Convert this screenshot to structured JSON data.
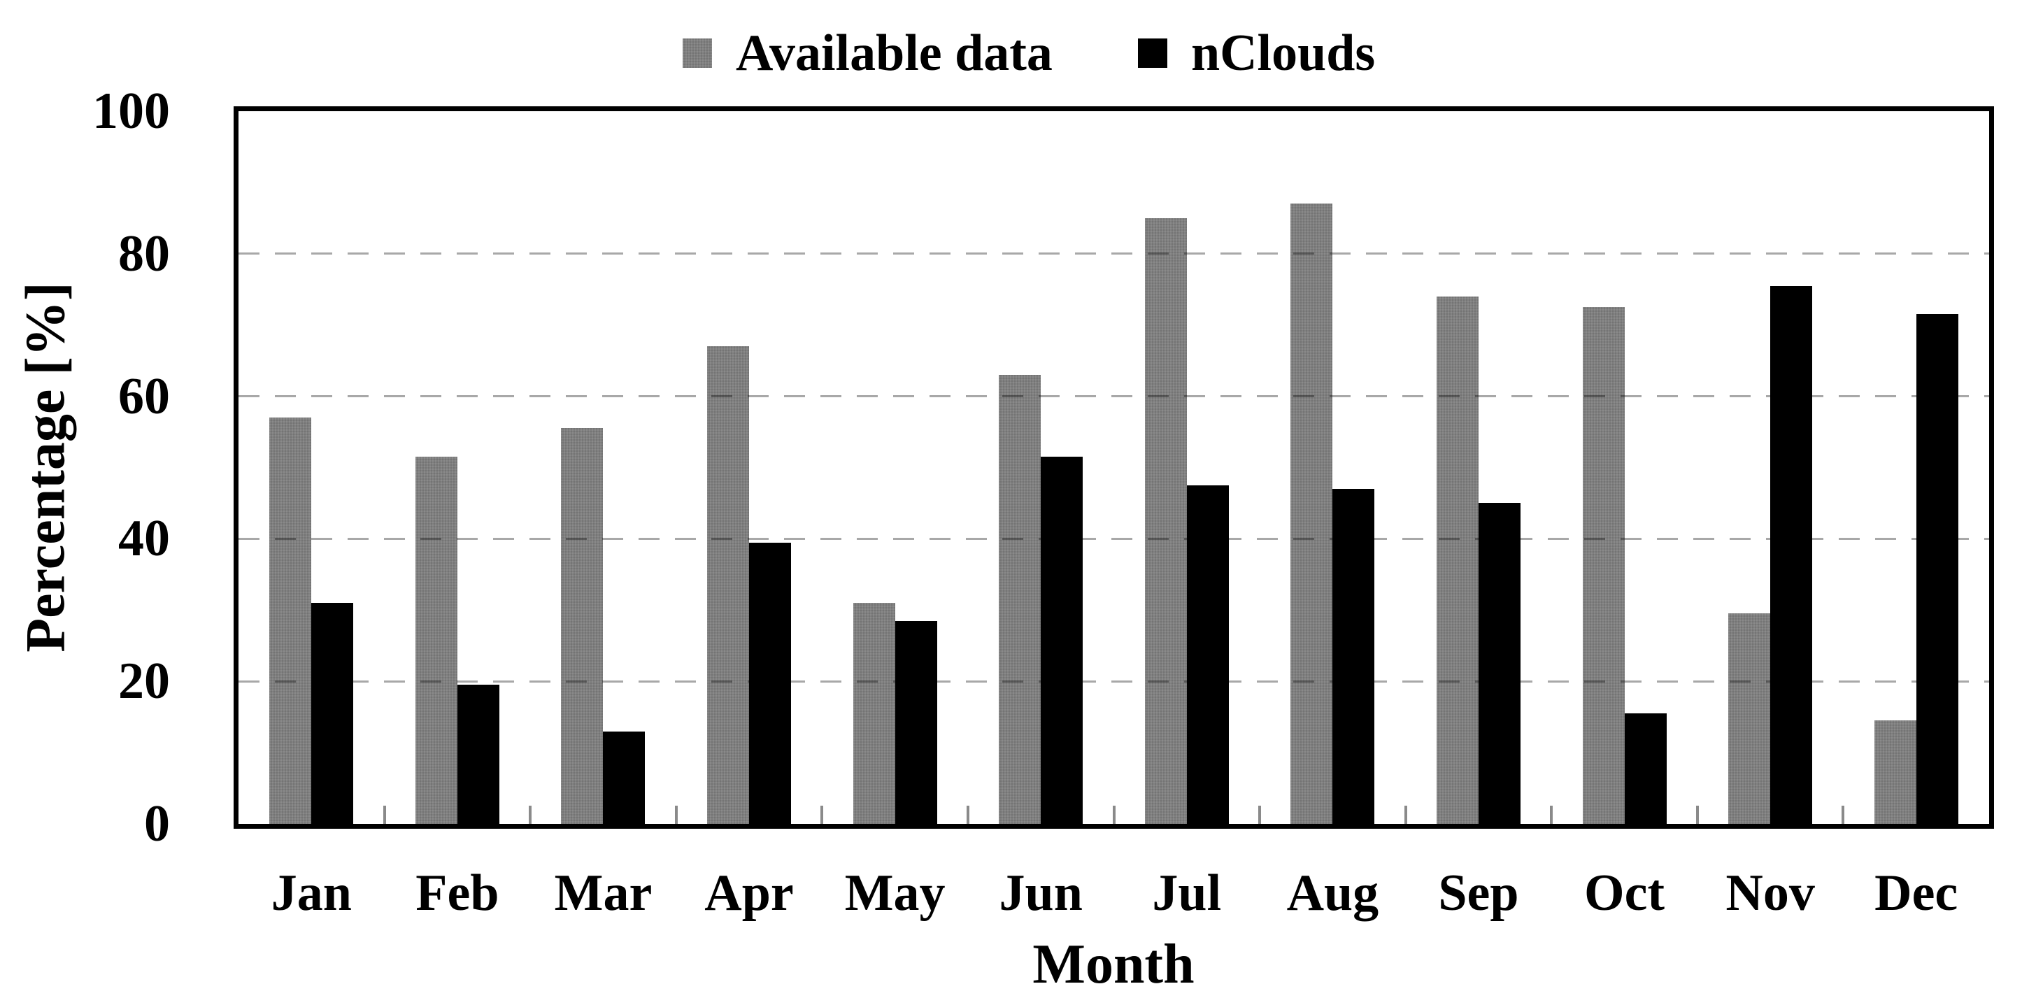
{
  "chart_data": {
    "type": "bar",
    "title": "",
    "categories": [
      "Jan",
      "Feb",
      "Mar",
      "Apr",
      "May",
      "Jun",
      "Jul",
      "Aug",
      "Sep",
      "Oct",
      "Nov",
      "Dec"
    ],
    "series": [
      {
        "name": "Available data",
        "color": "#7e7e7e",
        "values": [
          57,
          51.5,
          55.5,
          67,
          31,
          63,
          85,
          87,
          74,
          72.5,
          29.5,
          14.5
        ]
      },
      {
        "name": "nClouds",
        "color": "#000000",
        "values": [
          31,
          19.5,
          13,
          39.5,
          28.5,
          51.5,
          47.5,
          47,
          45,
          15.5,
          75.5,
          71.5
        ]
      }
    ],
    "xlabel": "Month",
    "ylabel": "Percentage [%]",
    "ylim": [
      0,
      100
    ],
    "yticks": [
      0,
      20,
      40,
      60,
      80,
      100
    ],
    "grid": "horizontal dashed gridlines at 20, 40, 60, 80",
    "gridline_color": "#a9a9a9",
    "legend_position": "top-center",
    "bar_unit": "percent"
  }
}
